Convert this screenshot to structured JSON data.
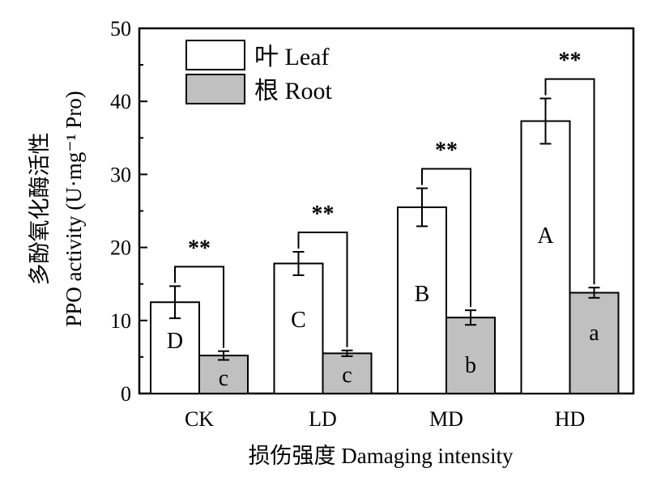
{
  "chart_data": {
    "type": "bar",
    "categories": [
      "CK",
      "LD",
      "MD",
      "HD"
    ],
    "series": [
      {
        "name": "叶 Leaf",
        "values": [
          12.5,
          17.8,
          25.5,
          37.3
        ],
        "errors": [
          2.2,
          1.6,
          2.6,
          3.1
        ],
        "letters": [
          "D",
          "C",
          "B",
          "A"
        ],
        "color": "#ffffff"
      },
      {
        "name": "根 Root",
        "values": [
          5.2,
          5.5,
          10.4,
          13.8
        ],
        "errors": [
          0.6,
          0.4,
          1.0,
          0.7
        ],
        "letters": [
          "c",
          "c",
          "b",
          "a"
        ],
        "color": "#c0c0c0"
      }
    ],
    "significance": [
      "**",
      "**",
      "**",
      "**"
    ],
    "xlabel": "损伤强度 Damaging intensity",
    "ylabel": "多酚氧化酶活性",
    "ylabel2": "PPO activity (U·mg⁻¹ Pro)",
    "ylim": [
      0,
      50
    ],
    "yticks": [
      "0",
      "10",
      "20",
      "30",
      "40",
      "50"
    ],
    "legend_position": "top-left",
    "grid": false
  }
}
